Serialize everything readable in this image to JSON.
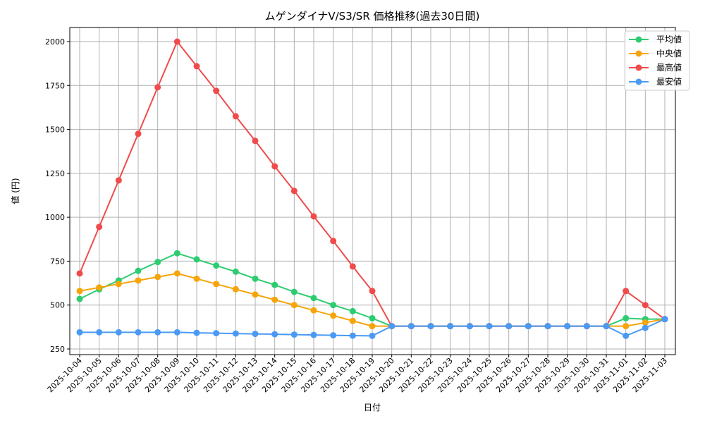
{
  "chart_data": {
    "type": "line",
    "title": "ムゲンダイナV/S3/SR 価格推移(過去30日間)",
    "xlabel": "日付",
    "ylabel": "値 (円)",
    "ylim": [
      240,
      2080
    ],
    "yticks": [
      250,
      500,
      750,
      1000,
      1250,
      1500,
      1750,
      2000
    ],
    "grid": true,
    "legend_position": "upper right",
    "categories": [
      "2025-10-04",
      "2025-10-05",
      "2025-10-06",
      "2025-10-07",
      "2025-10-08",
      "2025-10-09",
      "2025-10-10",
      "2025-10-11",
      "2025-10-12",
      "2025-10-13",
      "2025-10-14",
      "2025-10-15",
      "2025-10-16",
      "2025-10-17",
      "2025-10-18",
      "2025-10-19",
      "2025-10-20",
      "2025-10-21",
      "2025-10-22",
      "2025-10-23",
      "2025-10-24",
      "2025-10-25",
      "2025-10-26",
      "2025-10-27",
      "2025-10-28",
      "2025-10-29",
      "2025-10-30",
      "2025-10-31",
      "2025-11-01",
      "2025-11-02",
      "2025-11-03"
    ],
    "series": [
      {
        "name": "平均値",
        "color": "#2ecc71",
        "values": [
          535,
          590,
          640,
          695,
          745,
          795,
          760,
          725,
          690,
          650,
          615,
          575,
          540,
          500,
          465,
          425,
          380,
          380,
          380,
          380,
          380,
          380,
          380,
          380,
          380,
          380,
          380,
          380,
          425,
          420,
          420
        ]
      },
      {
        "name": "中央値",
        "color": "#f5a50a",
        "values": [
          580,
          600,
          620,
          640,
          660,
          680,
          650,
          620,
          590,
          560,
          530,
          500,
          470,
          440,
          410,
          380,
          380,
          380,
          380,
          380,
          380,
          380,
          380,
          380,
          380,
          380,
          380,
          380,
          380,
          400,
          420
        ]
      },
      {
        "name": "最高値",
        "color": "#f04b4b",
        "values": [
          680,
          945,
          1210,
          1475,
          1740,
          2000,
          1860,
          1720,
          1575,
          1435,
          1290,
          1150,
          1005,
          865,
          720,
          580,
          380,
          380,
          380,
          380,
          380,
          380,
          380,
          380,
          380,
          380,
          380,
          380,
          580,
          500,
          420
        ]
      },
      {
        "name": "最安値",
        "color": "#4a9af5",
        "values": [
          345,
          345,
          345,
          345,
          345,
          345,
          342,
          340,
          338,
          336,
          334,
          332,
          330,
          328,
          326,
          325,
          380,
          380,
          380,
          380,
          380,
          380,
          380,
          380,
          380,
          380,
          380,
          380,
          325,
          370,
          420
        ]
      }
    ]
  }
}
